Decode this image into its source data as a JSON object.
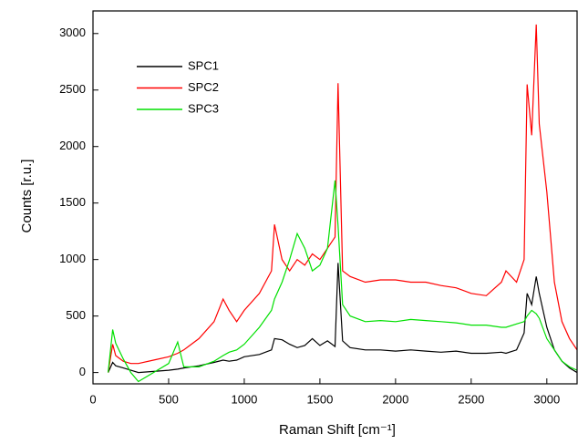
{
  "chart_data": {
    "type": "line",
    "x_label": "Raman Shift [cm⁻¹]",
    "y_label": "Counts [r.u.]",
    "x": [
      100,
      130,
      150,
      200,
      250,
      300,
      400,
      500,
      560,
      600,
      700,
      800,
      860,
      900,
      950,
      1000,
      1100,
      1180,
      1200,
      1250,
      1300,
      1350,
      1400,
      1450,
      1500,
      1550,
      1600,
      1620,
      1650,
      1700,
      1800,
      1900,
      2000,
      2100,
      2200,
      2300,
      2400,
      2500,
      2600,
      2700,
      2730,
      2800,
      2850,
      2870,
      2900,
      2930,
      2950,
      3000,
      3050,
      3100,
      3150,
      3200
    ],
    "series": [
      {
        "name": "SPC1",
        "color": "#000000",
        "values": [
          0,
          90,
          60,
          40,
          20,
          0,
          10,
          20,
          30,
          40,
          60,
          90,
          110,
          100,
          110,
          140,
          160,
          200,
          300,
          290,
          250,
          220,
          240,
          300,
          240,
          280,
          230,
          970,
          280,
          220,
          200,
          200,
          190,
          200,
          190,
          180,
          190,
          170,
          170,
          180,
          170,
          200,
          350,
          700,
          600,
          850,
          700,
          400,
          200,
          100,
          40,
          0
        ]
      },
      {
        "name": "SPC2",
        "color": "#ff0000",
        "values": [
          0,
          250,
          150,
          100,
          80,
          80,
          110,
          140,
          170,
          200,
          300,
          450,
          650,
          550,
          450,
          550,
          700,
          900,
          1310,
          1000,
          900,
          1000,
          950,
          1050,
          1000,
          1100,
          1200,
          2560,
          900,
          850,
          800,
          820,
          820,
          800,
          800,
          770,
          750,
          700,
          680,
          800,
          900,
          800,
          1000,
          2550,
          2100,
          3080,
          2200,
          1600,
          800,
          450,
          300,
          200
        ]
      },
      {
        "name": "SPC3",
        "color": "#00e000",
        "values": [
          0,
          380,
          260,
          120,
          0,
          -80,
          0,
          80,
          270,
          50,
          50,
          100,
          150,
          180,
          200,
          250,
          400,
          550,
          650,
          800,
          1000,
          1230,
          1100,
          900,
          950,
          1100,
          1700,
          1300,
          600,
          500,
          450,
          460,
          450,
          470,
          460,
          450,
          440,
          420,
          420,
          400,
          400,
          430,
          450,
          500,
          550,
          520,
          480,
          300,
          200,
          100,
          50,
          20
        ]
      }
    ],
    "xlim": [
      0,
      3200
    ],
    "ylim": [
      -100,
      3200
    ],
    "xticks": [
      0,
      500,
      1000,
      1500,
      2000,
      2500,
      3000
    ],
    "yticks": [
      0,
      500,
      1000,
      1500,
      2000,
      2500,
      3000
    ],
    "grid": false,
    "legend_position": "upper left"
  }
}
